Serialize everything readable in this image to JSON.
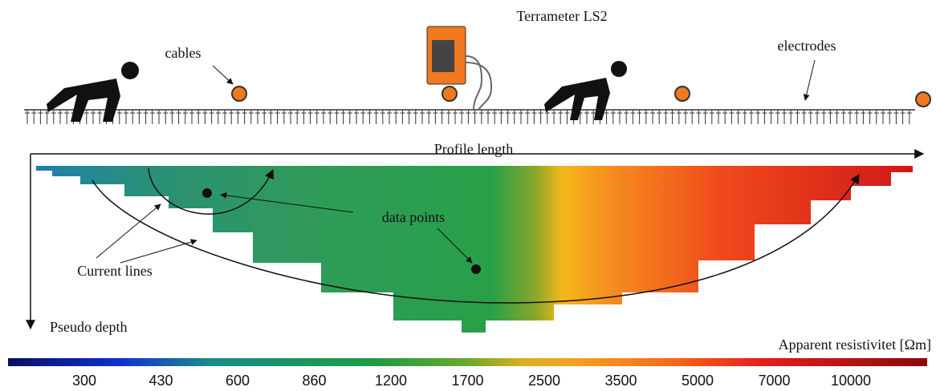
{
  "header": {
    "title": "Terrameter LS2"
  },
  "labels": {
    "cables": "cables",
    "electrodes": "electrodes",
    "profile_length": "Profile length",
    "pseudo_depth": "Pseudo depth",
    "data_points": "data points",
    "current_lines": "Current lines"
  },
  "colorbar": {
    "title": "Apparent resistivitet [Ωm]",
    "ticks": [
      300,
      430,
      600,
      860,
      1200,
      1700,
      2500,
      3500,
      5000,
      7000,
      10000
    ]
  }
}
